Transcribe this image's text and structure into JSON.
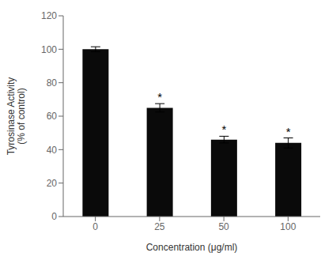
{
  "chart_data": {
    "type": "bar",
    "categories": [
      "0",
      "25",
      "50",
      "100"
    ],
    "values": [
      100,
      65,
      46,
      44
    ],
    "errors": [
      1.5,
      2.5,
      2.0,
      3.0
    ],
    "color": "#0a0a0a",
    "ylim": [
      0,
      120
    ],
    "yticks": [
      0,
      20,
      40,
      60,
      80,
      100,
      120
    ],
    "ylabel": "Tyrosinase Activity\n(% of control)",
    "xlabel": "Concentration (μg/ml)",
    "annotations": [
      {
        "category": "25",
        "text": "*"
      },
      {
        "category": "50",
        "text": "*"
      },
      {
        "category": "100",
        "text": "*"
      }
    ],
    "grid": false
  }
}
